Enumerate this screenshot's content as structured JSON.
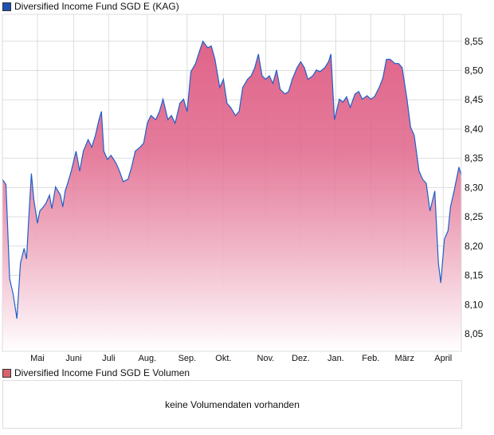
{
  "chart_data": {
    "type": "area",
    "title": "Diversified Income Fund SGD E (KAG)",
    "legend_color": "#1f4fb4",
    "line_color": "#1f5fc8",
    "fill_top_color": "#e0648a",
    "fill_bottom_color": "#ffffff",
    "ylim": [
      8.02,
      8.596
    ],
    "xlim": [
      0,
      380
    ],
    "xunit": "days since start",
    "grid": true,
    "yticks": [
      8.05,
      8.1,
      8.15,
      8.2,
      8.25,
      8.3,
      8.35,
      8.4,
      8.45,
      8.5,
      8.55
    ],
    "ytick_labels": [
      "8,05",
      "8,10",
      "8,15",
      "8,20",
      "8,25",
      "8,30",
      "8,35",
      "8,40",
      "8,45",
      "8,50",
      "8,55"
    ],
    "xticks": [
      {
        "label": "Mai",
        "day": 29
      },
      {
        "label": "Juni",
        "day": 59
      },
      {
        "label": "Juli",
        "day": 88
      },
      {
        "label": "Aug.",
        "day": 120
      },
      {
        "label": "Sep.",
        "day": 153
      },
      {
        "label": "Okt.",
        "day": 183
      },
      {
        "label": "Nov.",
        "day": 218
      },
      {
        "label": "Dez.",
        "day": 247
      },
      {
        "label": "Jan.",
        "day": 276
      },
      {
        "label": "Feb.",
        "day": 305
      },
      {
        "label": "März",
        "day": 333
      },
      {
        "label": "April",
        "day": 365
      }
    ],
    "x": [
      0,
      3,
      6,
      9,
      12,
      15,
      18,
      20,
      22,
      24,
      26,
      29,
      31,
      34,
      36,
      39,
      41,
      44,
      48,
      50,
      52,
      54,
      57,
      61,
      64,
      67,
      71,
      74,
      77,
      80,
      82,
      84,
      87,
      90,
      94,
      97,
      100,
      104,
      107,
      110,
      114,
      117,
      120,
      123,
      127,
      130,
      133,
      137,
      140,
      143,
      147,
      150,
      153,
      156,
      160,
      163,
      166,
      170,
      173,
      176,
      180,
      183,
      186,
      189,
      193,
      196,
      199,
      203,
      206,
      209,
      212,
      215,
      218,
      221,
      224,
      227,
      230,
      234,
      237,
      240,
      244,
      247,
      250,
      253,
      257,
      260,
      263,
      267,
      270,
      272,
      275,
      279,
      282,
      285,
      288,
      292,
      295,
      298,
      302,
      305,
      308,
      312,
      315,
      318,
      321,
      325,
      328,
      331,
      335,
      338,
      341,
      345,
      348,
      351,
      354,
      358,
      361,
      363,
      366,
      369,
      371,
      374,
      378,
      380
    ],
    "values": [
      8.314,
      8.305,
      8.144,
      8.117,
      8.076,
      8.171,
      8.196,
      8.178,
      8.253,
      8.324,
      8.28,
      8.239,
      8.26,
      8.267,
      8.273,
      8.287,
      8.264,
      8.301,
      8.287,
      8.267,
      8.294,
      8.307,
      8.328,
      8.362,
      8.328,
      8.362,
      8.382,
      8.369,
      8.389,
      8.416,
      8.43,
      8.362,
      8.348,
      8.355,
      8.342,
      8.328,
      8.31,
      8.314,
      8.335,
      8.362,
      8.369,
      8.376,
      8.41,
      8.423,
      8.416,
      8.43,
      8.451,
      8.416,
      8.423,
      8.41,
      8.444,
      8.451,
      8.43,
      8.498,
      8.512,
      8.532,
      8.55,
      8.539,
      8.542,
      8.519,
      8.471,
      8.485,
      8.444,
      8.437,
      8.423,
      8.43,
      8.471,
      8.485,
      8.491,
      8.505,
      8.528,
      8.491,
      8.485,
      8.491,
      8.478,
      8.501,
      8.468,
      8.46,
      8.464,
      8.485,
      8.505,
      8.515,
      8.505,
      8.485,
      8.491,
      8.501,
      8.498,
      8.505,
      8.515,
      8.528,
      8.416,
      8.451,
      8.446,
      8.455,
      8.437,
      8.46,
      8.464,
      8.451,
      8.457,
      8.451,
      8.455,
      8.471,
      8.487,
      8.519,
      8.519,
      8.512,
      8.512,
      8.505,
      8.451,
      8.403,
      8.389,
      8.328,
      8.314,
      8.307,
      8.26,
      8.294,
      8.171,
      8.137,
      8.212,
      8.226,
      8.267,
      8.294,
      8.335,
      8.321
    ]
  },
  "volume": {
    "legend": "Diversified Income Fund SGD E Volumen",
    "legend_color": "#d9626c",
    "empty_message": "keine Volumendaten vorhanden"
  }
}
